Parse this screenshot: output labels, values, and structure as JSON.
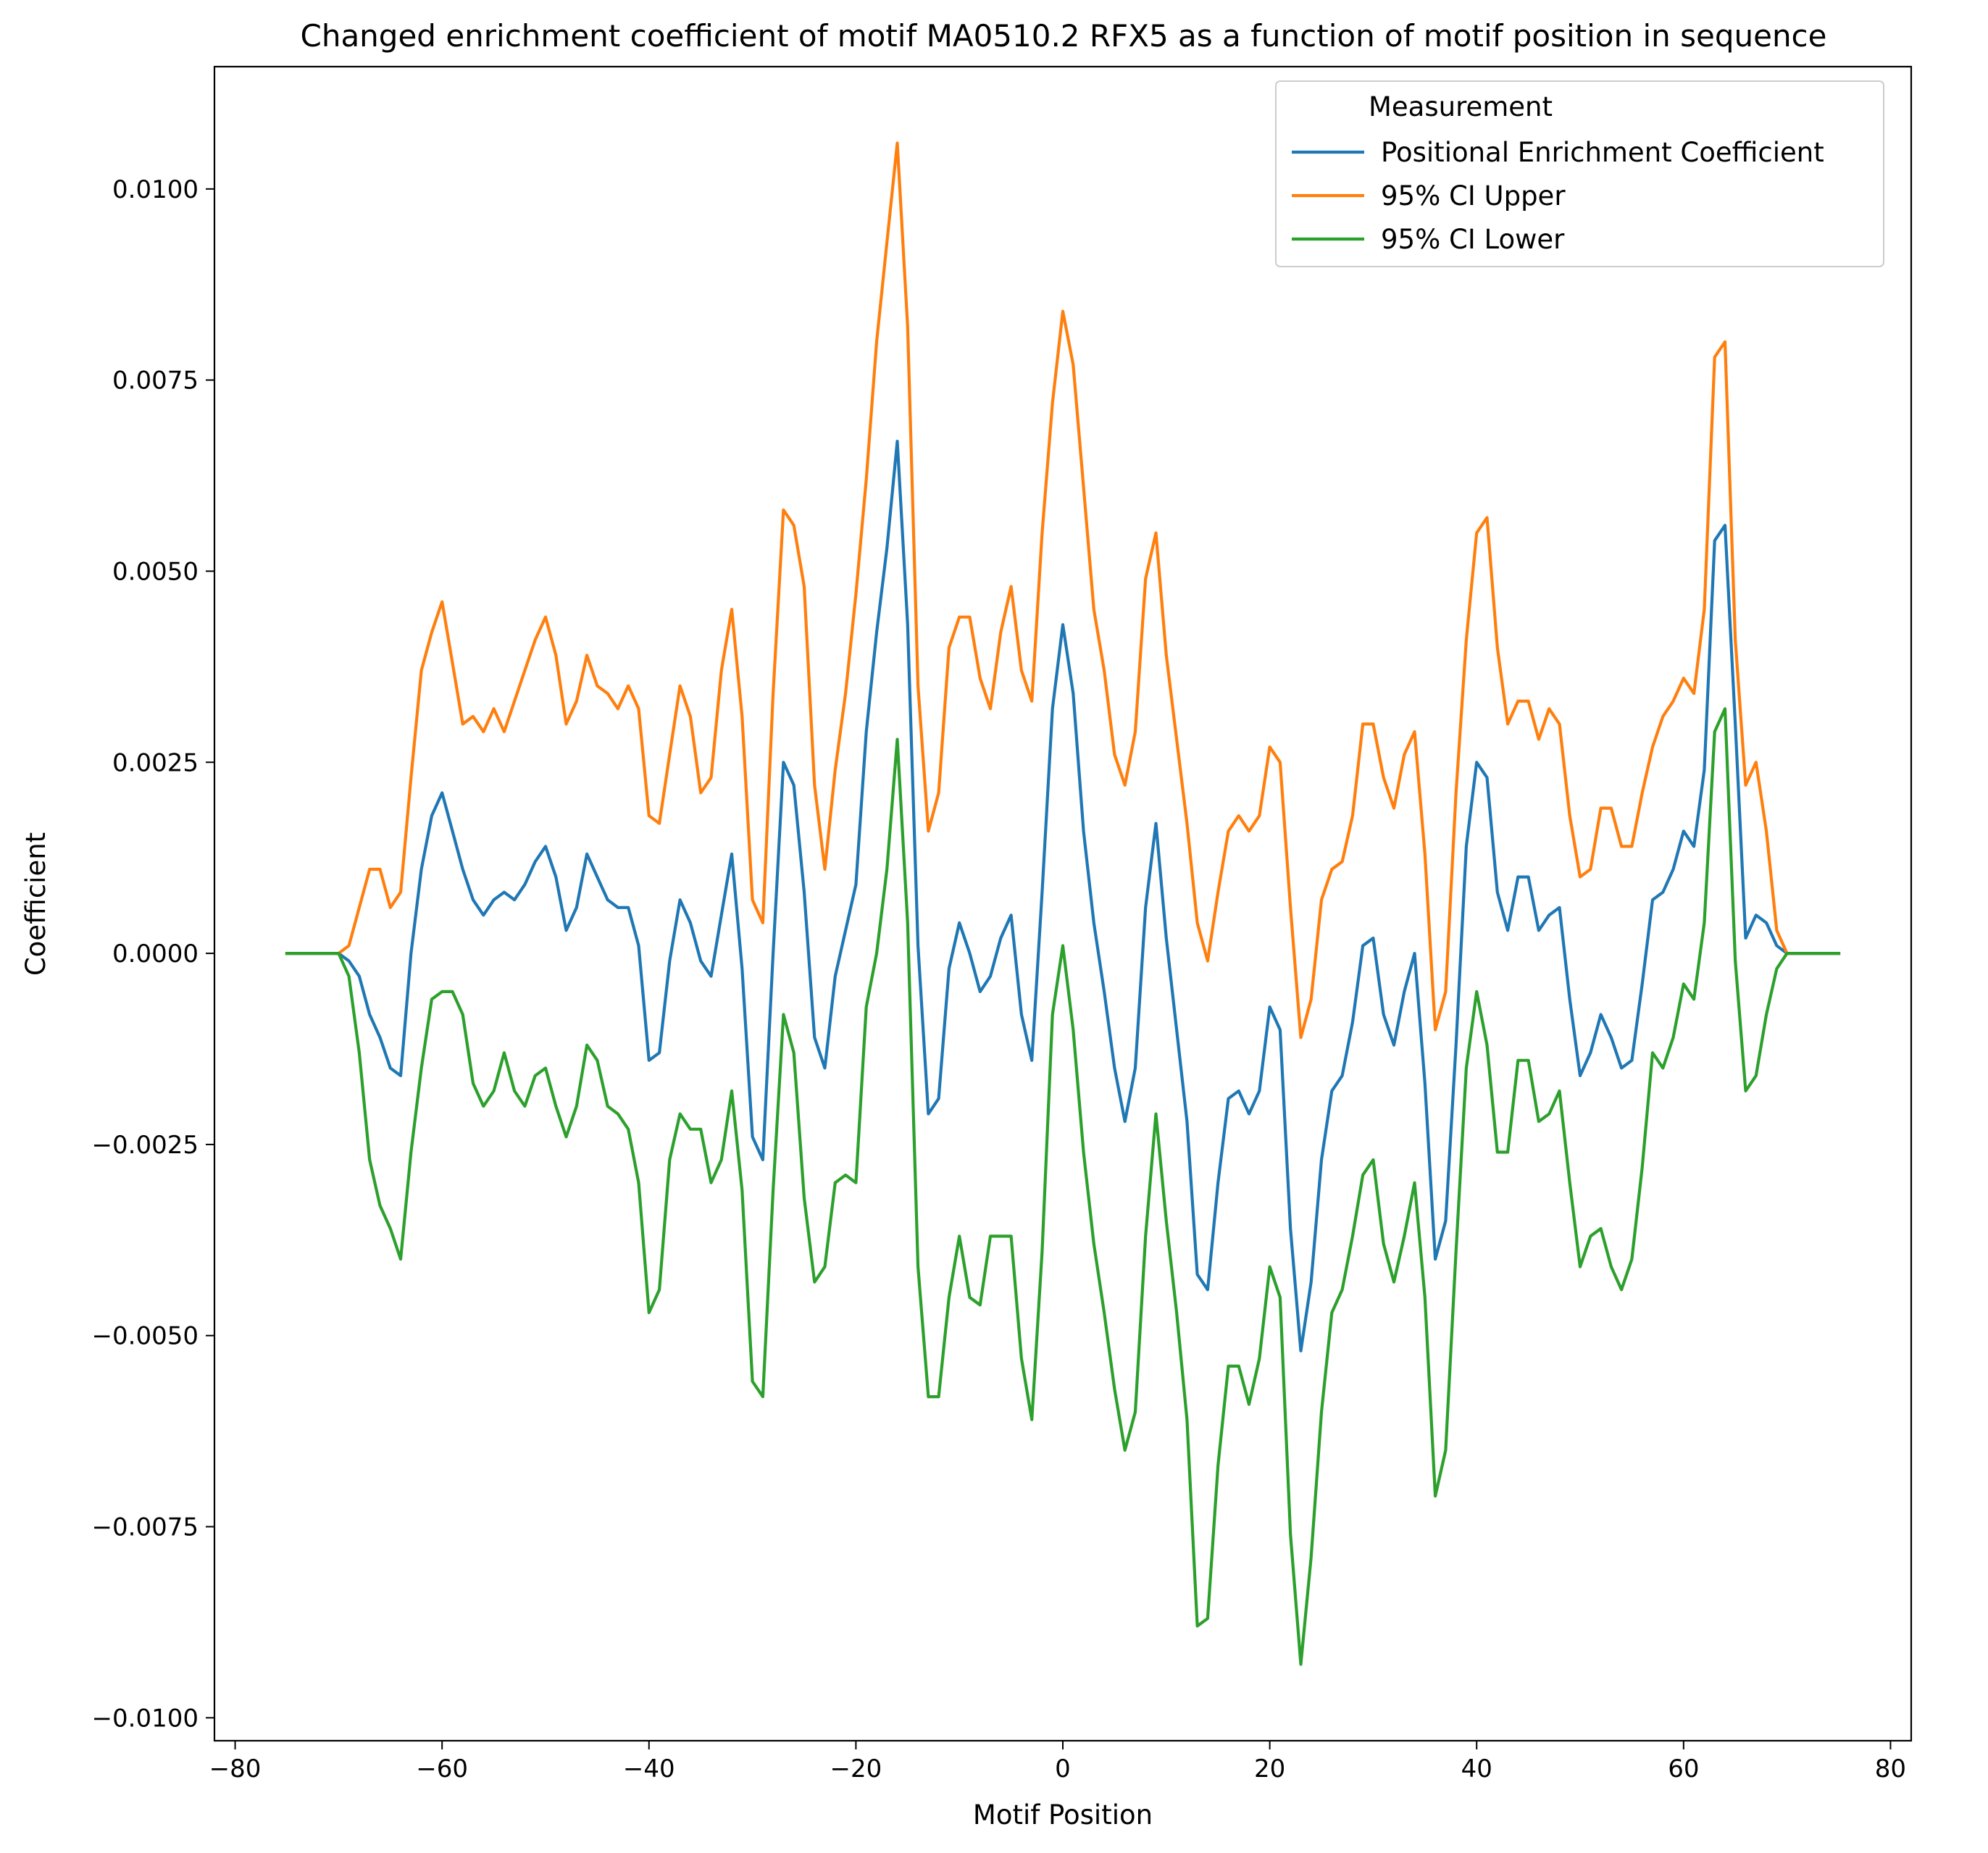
{
  "chart_data": {
    "type": "line",
    "title": "Changed enrichment coefficient of motif MA0510.2 RFX5 as a function of motif position in sequence",
    "xlabel": "Motif Position",
    "ylabel": "Coefficient",
    "xlim": [
      -82,
      82
    ],
    "ylim": [
      -0.0103,
      0.0116
    ],
    "xticks": [
      -80,
      -60,
      -40,
      -20,
      0,
      20,
      40,
      60,
      80
    ],
    "xtick_labels": [
      "−80",
      "−60",
      "−40",
      "−20",
      "0",
      "20",
      "40",
      "60",
      "80"
    ],
    "yticks": [
      -0.01,
      -0.0075,
      -0.005,
      -0.0025,
      0.0,
      0.0025,
      0.005,
      0.0075,
      0.01
    ],
    "ytick_labels": [
      "−0.0100",
      "−0.0075",
      "−0.0050",
      "−0.0025",
      "0.0000",
      "0.0025",
      "0.0050",
      "0.0075",
      "0.0100"
    ],
    "grid": false,
    "legend": {
      "title": "Measurement",
      "placement": "top-right"
    },
    "x": [
      -75,
      -74,
      -73,
      -72,
      -71,
      -70,
      -69,
      -68,
      -67,
      -66,
      -65,
      -64,
      -63,
      -62,
      -61,
      -60,
      -59,
      -58,
      -57,
      -56,
      -55,
      -54,
      -53,
      -52,
      -51,
      -50,
      -49,
      -48,
      -47,
      -46,
      -45,
      -44,
      -43,
      -42,
      -41,
      -40,
      -39,
      -38,
      -37,
      -36,
      -35,
      -34,
      -33,
      -32,
      -31,
      -30,
      -29,
      -28,
      -27,
      -26,
      -25,
      -24,
      -23,
      -22,
      -21,
      -20,
      -19,
      -18,
      -17,
      -16,
      -15,
      -14,
      -13,
      -12,
      -11,
      -10,
      -9,
      -8,
      -7,
      -6,
      -5,
      -4,
      -3,
      -2,
      -1,
      0,
      1,
      2,
      3,
      4,
      5,
      6,
      7,
      8,
      9,
      10,
      11,
      12,
      13,
      14,
      15,
      16,
      17,
      18,
      19,
      20,
      21,
      22,
      23,
      24,
      25,
      26,
      27,
      28,
      29,
      30,
      31,
      32,
      33,
      34,
      35,
      36,
      37,
      38,
      39,
      40,
      41,
      42,
      43,
      44,
      45,
      46,
      47,
      48,
      49,
      50,
      51,
      52,
      53,
      54,
      55,
      56,
      57,
      58,
      59,
      60,
      61,
      62,
      63,
      64,
      65,
      66,
      67,
      68,
      69,
      70,
      71,
      72,
      73,
      74,
      75
    ],
    "series": [
      {
        "name": "Positional Enrichment Coefficient",
        "color": "#1f77b4",
        "values": [
          0,
          0,
          0,
          0,
          0,
          0,
          -0.0001,
          -0.0003,
          -0.0008,
          -0.0011,
          -0.0015,
          -0.0016,
          0.0,
          0.0011,
          0.0018,
          0.0021,
          0.0016,
          0.0011,
          0.0007,
          0.0005,
          0.0007,
          0.0008,
          0.0007,
          0.0009,
          0.0012,
          0.0014,
          0.001,
          0.0003,
          0.0006,
          0.0013,
          0.001,
          0.0007,
          0.0006,
          0.0006,
          0.0001,
          -0.0014,
          -0.0013,
          -0.0001,
          0.0007,
          0.0004,
          -0.0001,
          -0.0003,
          0.0005,
          0.0013,
          -0.0002,
          -0.0024,
          -0.0027,
          0.0,
          0.0025,
          0.0022,
          0.0008,
          -0.0011,
          -0.0015,
          -0.0003,
          0.0003,
          0.0009,
          0.0029,
          0.0042,
          0.0053,
          0.0067,
          0.0043,
          0.0001,
          -0.0021,
          -0.0019,
          -0.0002,
          0.0004,
          0.0,
          -0.0005,
          -0.0003,
          0.0002,
          0.0005,
          -0.0008,
          -0.0014,
          0.0008,
          0.0032,
          0.0043,
          0.0034,
          0.0016,
          0.0004,
          -0.0005,
          -0.0015,
          -0.0022,
          -0.0015,
          0.0006,
          0.0017,
          0.0002,
          -0.001,
          -0.0022,
          -0.0042,
          -0.0044,
          -0.003,
          -0.0019,
          -0.0018,
          -0.0021,
          -0.0018,
          -0.0007,
          -0.001,
          -0.0036,
          -0.0052,
          -0.0043,
          -0.0027,
          -0.0018,
          -0.0016,
          -0.0009,
          0.0001,
          0.0002,
          -0.0008,
          -0.0012,
          -0.0005,
          0.0,
          -0.0017,
          -0.004,
          -0.0035,
          -0.0012,
          0.0014,
          0.0025,
          0.0023,
          0.0008,
          0.0003,
          0.001,
          0.001,
          0.0003,
          0.0005,
          0.0006,
          -0.0006,
          -0.0016,
          -0.0013,
          -0.0008,
          -0.0011,
          -0.0015,
          -0.0014,
          -0.0004,
          0.0007,
          0.0008,
          0.0011,
          0.0016,
          0.0014,
          0.0024,
          0.0054,
          0.0056,
          0.003,
          0.0002,
          0.0005,
          0.0004,
          0.0001,
          0,
          0,
          0,
          0,
          0,
          0
        ]
      },
      {
        "name": "95% CI Upper",
        "color": "#ff7f0e",
        "values": [
          0,
          0,
          0,
          0,
          0,
          0,
          0.0001,
          0.0006,
          0.0011,
          0.0011,
          0.0006,
          0.0008,
          0.0023,
          0.0037,
          0.0042,
          0.0046,
          0.0038,
          0.003,
          0.0031,
          0.0029,
          0.0032,
          0.0029,
          0.0033,
          0.0037,
          0.0041,
          0.0044,
          0.0039,
          0.003,
          0.0033,
          0.0039,
          0.0035,
          0.0034,
          0.0032,
          0.0035,
          0.0032,
          0.0018,
          0.0017,
          0.0026,
          0.0035,
          0.0031,
          0.0021,
          0.0023,
          0.0037,
          0.0045,
          0.0031,
          0.0007,
          0.0004,
          0.0034,
          0.0058,
          0.0056,
          0.0048,
          0.0022,
          0.0011,
          0.0024,
          0.0034,
          0.0047,
          0.0062,
          0.008,
          0.0093,
          0.0106,
          0.0082,
          0.0035,
          0.0016,
          0.0021,
          0.004,
          0.0044,
          0.0044,
          0.0036,
          0.0032,
          0.0042,
          0.0048,
          0.0037,
          0.0033,
          0.0055,
          0.0072,
          0.0084,
          0.0077,
          0.0061,
          0.0045,
          0.0037,
          0.0026,
          0.0022,
          0.0029,
          0.0049,
          0.0055,
          0.0039,
          0.0028,
          0.0017,
          0.0004,
          -0.0001,
          0.0008,
          0.0016,
          0.0018,
          0.0016,
          0.0018,
          0.0027,
          0.0025,
          0.0006,
          -0.0011,
          -0.0006,
          0.0007,
          0.0011,
          0.0012,
          0.0018,
          0.003,
          0.003,
          0.0023,
          0.0019,
          0.0026,
          0.0029,
          0.0013,
          -0.001,
          -0.0005,
          0.0021,
          0.0041,
          0.0055,
          0.0057,
          0.004,
          0.003,
          0.0033,
          0.0033,
          0.0028,
          0.0032,
          0.003,
          0.0018,
          0.001,
          0.0011,
          0.0019,
          0.0019,
          0.0014,
          0.0014,
          0.0021,
          0.0027,
          0.0031,
          0.0033,
          0.0036,
          0.0034,
          0.0045,
          0.0078,
          0.008,
          0.0041,
          0.0022,
          0.0025,
          0.0016,
          0.0003,
          0,
          0,
          0,
          0,
          0,
          0
        ]
      },
      {
        "name": "95% CI Lower",
        "color": "#2ca02c",
        "values": [
          0,
          0,
          0,
          0,
          0,
          0,
          -0.0003,
          -0.0013,
          -0.0027,
          -0.0033,
          -0.0036,
          -0.004,
          -0.0026,
          -0.0015,
          -0.0006,
          -0.0005,
          -0.0005,
          -0.0008,
          -0.0017,
          -0.002,
          -0.0018,
          -0.0013,
          -0.0018,
          -0.002,
          -0.0016,
          -0.0015,
          -0.002,
          -0.0024,
          -0.002,
          -0.0012,
          -0.0014,
          -0.002,
          -0.0021,
          -0.0023,
          -0.003,
          -0.0047,
          -0.0044,
          -0.0027,
          -0.0021,
          -0.0023,
          -0.0023,
          -0.003,
          -0.0027,
          -0.0018,
          -0.0031,
          -0.0056,
          -0.0058,
          -0.0031,
          -0.0008,
          -0.0013,
          -0.0032,
          -0.0043,
          -0.0041,
          -0.003,
          -0.0029,
          -0.003,
          -0.0007,
          0.0,
          0.0011,
          0.0028,
          0.0004,
          -0.0041,
          -0.0058,
          -0.0058,
          -0.0045,
          -0.0037,
          -0.0045,
          -0.0046,
          -0.0037,
          -0.0037,
          -0.0037,
          -0.0053,
          -0.0061,
          -0.0039,
          -0.0008,
          0.0001,
          -0.001,
          -0.0026,
          -0.0038,
          -0.0047,
          -0.0057,
          -0.0065,
          -0.006,
          -0.0037,
          -0.0021,
          -0.0035,
          -0.0047,
          -0.0061,
          -0.0088,
          -0.0087,
          -0.0067,
          -0.0054,
          -0.0054,
          -0.0059,
          -0.0053,
          -0.0041,
          -0.0045,
          -0.0076,
          -0.0093,
          -0.0079,
          -0.006,
          -0.0047,
          -0.0044,
          -0.0037,
          -0.0029,
          -0.0027,
          -0.0038,
          -0.0043,
          -0.0037,
          -0.003,
          -0.0045,
          -0.0071,
          -0.0065,
          -0.0039,
          -0.0015,
          -0.0005,
          -0.0012,
          -0.0026,
          -0.0026,
          -0.0014,
          -0.0014,
          -0.0022,
          -0.0021,
          -0.0018,
          -0.003,
          -0.0041,
          -0.0037,
          -0.0036,
          -0.0041,
          -0.0044,
          -0.004,
          -0.0028,
          -0.0013,
          -0.0015,
          -0.0011,
          -0.0004,
          -0.0006,
          0.0004,
          0.0029,
          0.0032,
          -0.0001,
          -0.0018,
          -0.0016,
          -0.0008,
          -0.0002,
          0,
          0,
          0,
          0,
          0,
          0
        ]
      }
    ]
  }
}
